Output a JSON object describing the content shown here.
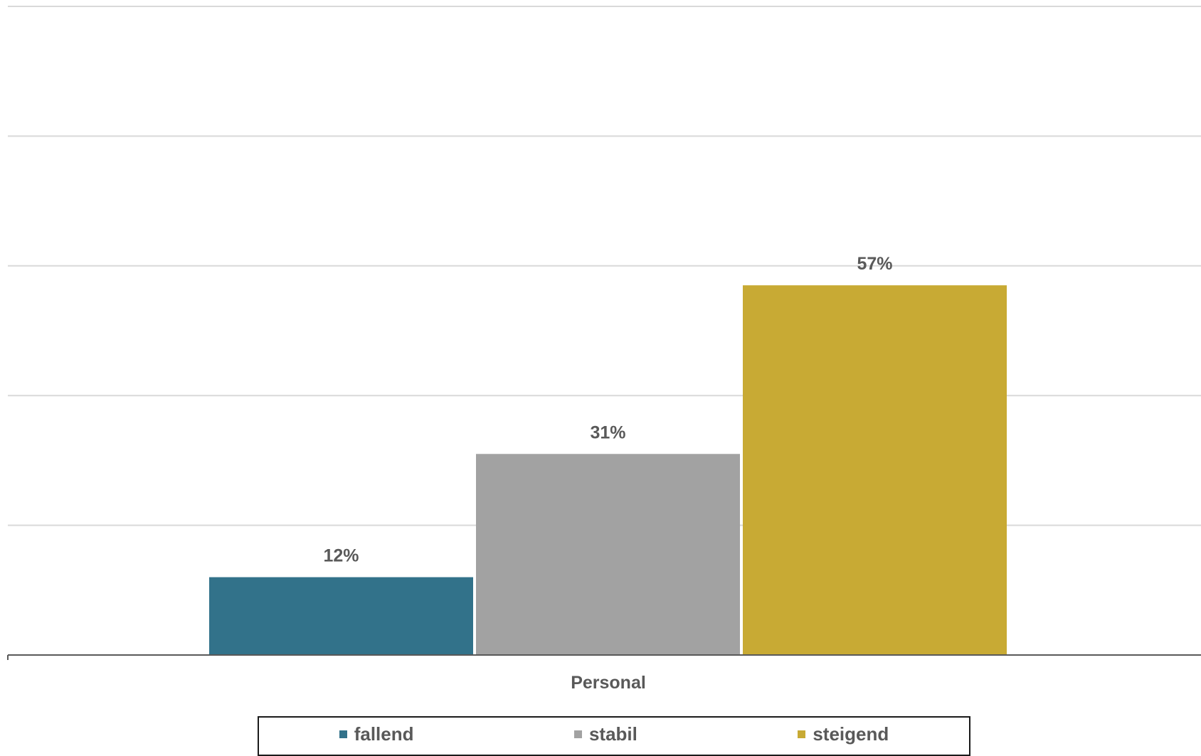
{
  "chart_data": {
    "type": "bar",
    "categories": [
      "Personal"
    ],
    "xlabel": "Personal",
    "ylabel": "",
    "ylim": [
      0,
      100
    ],
    "y_gridlines": [
      0,
      20,
      40,
      60,
      80,
      100
    ],
    "series": [
      {
        "name": "fallend",
        "values": [
          12
        ],
        "label": "12%",
        "color": "#32728A"
      },
      {
        "name": "stabil",
        "values": [
          31
        ],
        "label": "31%",
        "color": "#A2A2A2"
      },
      {
        "name": "steigend",
        "values": [
          57
        ],
        "label": "57%",
        "color": "#C8AA34"
      }
    ],
    "grid": true,
    "legend": "bottom",
    "value_format": "percent"
  },
  "colors": {
    "grid": "#D9D9D9",
    "axis": "#595959",
    "text": "#595959",
    "legend_border": "#1a1a1a"
  }
}
